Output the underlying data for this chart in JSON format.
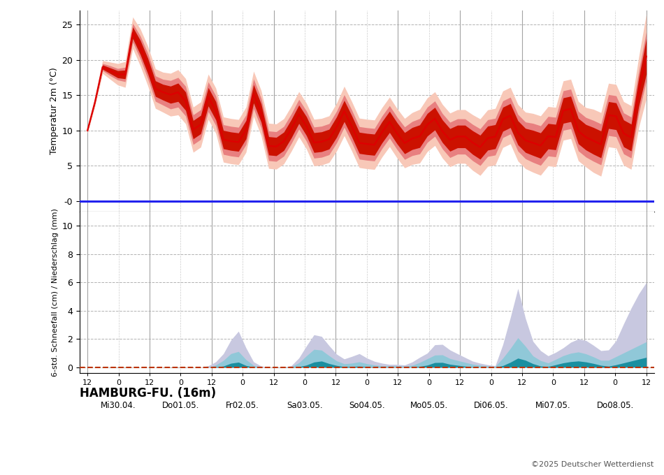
{
  "station_label": "HAMBURG-FU. (16m)",
  "copyright": "©2025 Deutscher Wetterdienst",
  "temp_ylabel": "Temperatur 2m (°C)",
  "temp_ylim": [
    -1.5,
    27
  ],
  "temp_yticks": [
    0,
    5,
    10,
    15,
    20,
    25
  ],
  "temp_ytick_labels": [
    "-0",
    "5",
    "10",
    "15",
    "20",
    "25"
  ],
  "precip_ylabel": "6-std. Schneefall (cm) / Niederschlag (mm)",
  "precip_ylim": [
    -0.4,
    11
  ],
  "precip_yticks": [
    0,
    2,
    4,
    6,
    8,
    10
  ],
  "color_temp_line": "#dd0000",
  "color_temp_band_inner": "#cc1100",
  "color_temp_band_mid": "#e88080",
  "color_temp_band_outer": "#f8c8b8",
  "color_zero_line": "#2222ee",
  "color_precip_dark": "#1a8fa0",
  "color_precip_mid": "#90c8d8",
  "color_precip_light": "#c8c8e0",
  "color_precip_zero": "#bb3300",
  "grid_color": "#aaaaaa",
  "vline_color": "#999999",
  "background_color": "#ffffff",
  "day_labels": [
    "Mi30.04.",
    "Do01.05.",
    "Fr02.05.",
    "Sa03.05.",
    "So04.05.",
    "Mo05.05.",
    "Di06.05.",
    "Mi07.05.",
    "Do08.05."
  ],
  "temp_mean": [
    10.0,
    14.0,
    19.0,
    18.5,
    18.0,
    17.5,
    24.0,
    22.0,
    19.5,
    16.0,
    15.5,
    15.0,
    15.5,
    15.0,
    10.2,
    9.8,
    15.0,
    14.0,
    8.8,
    8.5,
    8.5,
    8.0,
    15.5,
    14.5,
    8.0,
    7.5,
    8.2,
    9.0,
    12.5,
    12.0,
    8.5,
    8.0,
    9.0,
    8.5,
    13.0,
    12.5,
    8.5,
    8.0,
    8.2,
    7.8,
    11.5,
    11.0,
    8.5,
    8.0,
    9.5,
    9.0,
    12.0,
    11.5,
    9.0,
    8.5,
    9.5,
    9.0,
    8.0,
    7.5,
    9.5,
    9.0,
    12.5,
    12.0,
    9.0,
    8.5,
    8.2,
    7.8,
    9.5,
    9.0,
    13.5,
    13.0,
    9.5,
    9.0,
    8.5,
    8.0,
    12.5,
    12.0,
    9.5,
    9.0,
    15.5,
    20.5
  ],
  "temp_inner_spread": [
    0.1,
    0.2,
    0.3,
    0.4,
    0.5,
    0.6,
    0.8,
    1.0,
    1.1,
    1.1,
    1.1,
    1.2,
    1.3,
    1.3,
    1.3,
    1.3,
    1.3,
    1.3,
    1.3,
    1.3,
    1.3,
    1.3,
    1.3,
    1.3,
    1.3,
    1.3,
    1.3,
    1.3,
    1.3,
    1.3,
    1.4,
    1.4,
    1.4,
    1.4,
    1.5,
    1.5,
    1.5,
    1.5,
    1.5,
    1.5,
    1.5,
    1.5,
    1.5,
    1.5,
    1.6,
    1.6,
    1.6,
    1.6,
    1.6,
    1.6,
    1.6,
    1.6,
    1.7,
    1.7,
    1.7,
    1.7,
    1.7,
    1.7,
    1.7,
    1.7,
    1.8,
    1.8,
    1.8,
    1.8,
    1.8,
    1.8,
    1.8,
    1.8,
    1.9,
    1.9,
    1.9,
    1.9,
    1.9,
    1.9,
    2.0,
    2.5
  ],
  "temp_mid_spread": [
    0.2,
    0.3,
    0.5,
    0.7,
    0.8,
    1.0,
    1.3,
    1.6,
    1.8,
    1.8,
    1.8,
    2.0,
    2.1,
    2.1,
    2.1,
    2.1,
    2.1,
    2.1,
    2.1,
    2.1,
    2.1,
    2.1,
    2.1,
    2.1,
    2.1,
    2.1,
    2.1,
    2.1,
    2.1,
    2.1,
    2.2,
    2.2,
    2.2,
    2.2,
    2.3,
    2.3,
    2.3,
    2.3,
    2.3,
    2.3,
    2.3,
    2.3,
    2.3,
    2.3,
    2.5,
    2.5,
    2.5,
    2.5,
    2.5,
    2.5,
    2.5,
    2.5,
    2.6,
    2.6,
    2.6,
    2.6,
    2.6,
    2.6,
    2.6,
    2.6,
    2.8,
    2.8,
    2.8,
    2.8,
    2.8,
    2.8,
    2.8,
    2.8,
    2.9,
    2.9,
    2.9,
    2.9,
    2.9,
    2.9,
    3.0,
    3.5
  ],
  "temp_outer_spread": [
    0.4,
    0.6,
    0.9,
    1.2,
    1.5,
    1.8,
    2.2,
    2.6,
    2.8,
    2.8,
    2.8,
    3.0,
    3.2,
    3.2,
    3.2,
    3.2,
    3.2,
    3.2,
    3.2,
    3.2,
    3.2,
    3.2,
    3.2,
    3.2,
    3.2,
    3.2,
    3.2,
    3.2,
    3.2,
    3.2,
    3.3,
    3.3,
    3.3,
    3.3,
    3.5,
    3.5,
    3.5,
    3.5,
    3.5,
    3.5,
    3.5,
    3.5,
    3.5,
    3.5,
    3.8,
    3.8,
    3.8,
    3.8,
    3.8,
    3.8,
    3.8,
    3.8,
    4.0,
    4.0,
    4.0,
    4.0,
    4.0,
    4.0,
    4.0,
    4.0,
    4.2,
    4.2,
    4.2,
    4.2,
    4.2,
    4.2,
    4.2,
    4.2,
    4.5,
    4.5,
    4.5,
    4.5,
    4.5,
    4.5,
    5.0,
    6.0
  ],
  "precip_light": [
    0,
    0,
    0,
    0,
    0,
    0,
    0,
    0,
    0,
    0,
    0,
    0,
    0,
    0,
    0,
    0,
    0,
    0,
    0,
    0,
    0,
    0.1,
    0.3,
    0.6,
    1.2,
    2.0,
    2.7,
    2.0,
    0.8,
    0.3,
    0.1,
    0,
    0,
    0,
    0,
    0,
    0.3,
    0.8,
    1.5,
    2.2,
    2.5,
    2.0,
    1.5,
    1.0,
    0.7,
    0.5,
    0.8,
    1.0,
    0.8,
    0.5,
    0.4,
    0.3,
    0.2,
    0.2,
    0.2,
    0.15,
    0.3,
    0.5,
    0.8,
    1.0,
    1.5,
    1.8,
    1.5,
    1.2,
    1.0,
    0.8,
    0.6,
    0.4,
    0.3,
    0.2,
    0.15,
    0.1,
    1.5,
    2.5,
    5.0,
    5.8,
    3.5,
    2.0,
    1.5,
    1.0,
    0.8,
    1.0,
    1.2,
    1.5,
    1.8,
    2.0,
    2.0,
    1.8,
    1.5,
    1.2,
    1.0,
    1.5,
    2.0,
    3.0,
    4.0,
    4.5,
    5.5,
    6.0
  ],
  "precip_mid": [
    0,
    0,
    0,
    0,
    0,
    0,
    0,
    0,
    0,
    0,
    0,
    0,
    0,
    0,
    0,
    0,
    0,
    0,
    0,
    0,
    0,
    0,
    0.1,
    0.3,
    0.6,
    1.0,
    1.2,
    0.8,
    0.3,
    0.1,
    0,
    0,
    0,
    0,
    0,
    0,
    0.1,
    0.4,
    0.8,
    1.2,
    1.4,
    1.1,
    0.8,
    0.5,
    0.3,
    0.2,
    0.3,
    0.4,
    0.3,
    0.2,
    0.15,
    0.1,
    0.1,
    0.1,
    0.1,
    0.08,
    0.1,
    0.2,
    0.4,
    0.6,
    0.8,
    1.0,
    0.8,
    0.6,
    0.5,
    0.4,
    0.3,
    0.2,
    0.15,
    0.1,
    0.08,
    0.05,
    0.6,
    1.0,
    1.8,
    2.2,
    1.5,
    0.9,
    0.6,
    0.4,
    0.3,
    0.5,
    0.7,
    0.9,
    1.0,
    1.1,
    1.0,
    0.9,
    0.7,
    0.5,
    0.4,
    0.6,
    0.8,
    1.0,
    1.2,
    1.4,
    1.6,
    1.8
  ],
  "precip_dark": [
    0,
    0,
    0,
    0,
    0,
    0,
    0,
    0,
    0,
    0,
    0,
    0,
    0,
    0,
    0,
    0,
    0,
    0,
    0,
    0,
    0,
    0,
    0,
    0.05,
    0.1,
    0.3,
    0.4,
    0.2,
    0.05,
    0,
    0,
    0,
    0,
    0,
    0,
    0,
    0,
    0.05,
    0.15,
    0.3,
    0.5,
    0.4,
    0.25,
    0.15,
    0.05,
    0.02,
    0.05,
    0.08,
    0.05,
    0.02,
    0,
    0,
    0,
    0,
    0,
    0,
    0,
    0.02,
    0.08,
    0.15,
    0.3,
    0.4,
    0.3,
    0.2,
    0.15,
    0.1,
    0.05,
    0.02,
    0,
    0,
    0,
    0,
    0.1,
    0.25,
    0.5,
    0.7,
    0.5,
    0.3,
    0.15,
    0.05,
    0.05,
    0.15,
    0.25,
    0.35,
    0.4,
    0.45,
    0.4,
    0.35,
    0.25,
    0.15,
    0.05,
    0.1,
    0.2,
    0.3,
    0.4,
    0.5,
    0.6,
    0.7
  ]
}
